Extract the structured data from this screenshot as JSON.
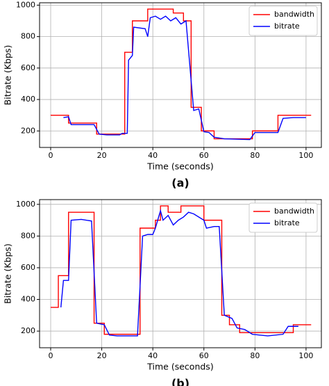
{
  "chart_data": [
    {
      "type": "line",
      "caption": "(a)",
      "xlabel": "Time (seconds)",
      "ylabel": "Bitrate (Kbps)",
      "xlim": [
        -4.35,
        106
      ],
      "ylim": [
        95,
        1015
      ],
      "xticks": [
        0,
        20,
        40,
        60,
        80,
        100
      ],
      "yticks": [
        200,
        400,
        600,
        800,
        1000
      ],
      "grid": true,
      "legend": "upper right",
      "series": [
        {
          "name": "bandwidth",
          "color": "#ff0000",
          "x": [
            0,
            7,
            7,
            18,
            18,
            29,
            29,
            32,
            32,
            38,
            38,
            48,
            48,
            52,
            52,
            55,
            55,
            59,
            59,
            64,
            64,
            79,
            79,
            89,
            89,
            102
          ],
          "values": [
            300,
            300,
            250,
            250,
            180,
            180,
            700,
            700,
            900,
            900,
            975,
            975,
            950,
            950,
            900,
            900,
            350,
            350,
            200,
            200,
            150,
            150,
            200,
            200,
            300,
            300
          ]
        },
        {
          "name": "bitrate",
          "color": "#0000ff",
          "x": [
            5,
            7,
            8,
            17,
            19,
            22,
            27,
            28,
            30,
            30.5,
            32,
            32.5,
            37,
            38,
            39,
            41,
            43,
            45,
            47,
            49,
            51,
            53,
            56,
            58,
            60,
            62,
            64,
            68,
            78,
            80,
            89,
            91,
            95,
            100
          ],
          "values": [
            285,
            290,
            240,
            240,
            180,
            175,
            175,
            185,
            185,
            650,
            680,
            860,
            850,
            800,
            920,
            930,
            910,
            930,
            900,
            920,
            880,
            900,
            330,
            340,
            195,
            190,
            160,
            150,
            145,
            190,
            190,
            280,
            285,
            285
          ]
        }
      ]
    },
    {
      "type": "line",
      "caption": "(b)",
      "xlabel": "Time (seconds)",
      "ylabel": "Bitrate (Kbps)",
      "xlim": [
        -4.35,
        106
      ],
      "ylim": [
        95,
        1030
      ],
      "xticks": [
        0,
        20,
        40,
        60,
        80,
        100
      ],
      "yticks": [
        200,
        400,
        600,
        800,
        1000
      ],
      "grid": true,
      "legend": "upper right",
      "series": [
        {
          "name": "bandwidth",
          "color": "#ff0000",
          "x": [
            0,
            3,
            3,
            7,
            7,
            17,
            17,
            21,
            21,
            35,
            35,
            41,
            41,
            43,
            43,
            46,
            46,
            51,
            51,
            60,
            60,
            67,
            67,
            70,
            70,
            74,
            74,
            95,
            95,
            102
          ],
          "values": [
            350,
            350,
            550,
            550,
            950,
            950,
            250,
            250,
            180,
            180,
            850,
            850,
            900,
            900,
            990,
            990,
            950,
            950,
            990,
            990,
            900,
            900,
            300,
            300,
            240,
            240,
            190,
            190,
            240,
            240
          ]
        },
        {
          "name": "bitrate",
          "color": "#0000ff",
          "x": [
            4,
            5,
            7,
            8,
            12,
            16,
            18,
            21,
            23,
            26,
            34,
            36,
            38,
            40,
            41,
            43,
            44,
            46,
            48,
            50,
            52,
            54,
            56,
            60,
            61,
            64,
            66,
            68,
            71,
            73,
            76,
            79,
            85,
            91,
            93,
            97
          ],
          "values": [
            350,
            520,
            520,
            900,
            905,
            895,
            250,
            240,
            175,
            170,
            170,
            800,
            810,
            810,
            850,
            960,
            900,
            930,
            870,
            900,
            920,
            950,
            940,
            900,
            850,
            860,
            860,
            300,
            280,
            220,
            210,
            180,
            170,
            180,
            230,
            230
          ]
        }
      ]
    }
  ]
}
